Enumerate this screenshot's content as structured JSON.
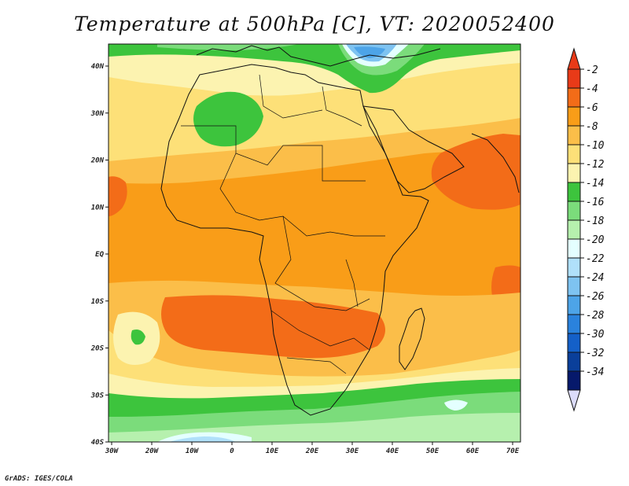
{
  "title": "Temperature at 500hPa [C], VT: 2020052400",
  "footer": "GrADS: IGES/COLA",
  "map": {
    "lon_range": [
      -30,
      75
    ],
    "lat_range": [
      -40,
      45
    ],
    "x_ticks": [
      "30W",
      "20W",
      "10W",
      "0",
      "10E",
      "20E",
      "30E",
      "40E",
      "50E",
      "60E",
      "70E"
    ],
    "y_ticks": [
      "40N",
      "30N",
      "20N",
      "10N",
      "EQ",
      "10S",
      "20S",
      "30S",
      "40S"
    ]
  },
  "colorbar": {
    "labels": [
      "-2",
      "-4",
      "-6",
      "-8",
      "-10",
      "-12",
      "-14",
      "-16",
      "-18",
      "-20",
      "-22",
      "-24",
      "-26",
      "-28",
      "-30",
      "-32",
      "-34"
    ],
    "colors": [
      "#e83a18",
      "#f36c18",
      "#f99d18",
      "#fbbe49",
      "#fde078",
      "#fcf3b0",
      "#3dc43d",
      "#7bdc7b",
      "#b6f0ae",
      "#e4ffff",
      "#b0e0fa",
      "#7ec3f1",
      "#4da4e8",
      "#2a82dd",
      "#1460c8",
      "#0a3f9a",
      "#06196b"
    ],
    "top_color": "#e83a18",
    "bottom_color": "#dcdcfa"
  },
  "field_colors": {
    "c_m4": "#f36c18",
    "c_m6": "#f99d18",
    "c_m8": "#fbbe49",
    "c_m10": "#fde078",
    "c_m12": "#fcf3b0",
    "c_m14": "#3dc43d",
    "c_m16": "#7bdc7b",
    "c_m18": "#b6f0ae",
    "c_m20": "#e4ffff",
    "c_m22": "#b0e0fa",
    "c_m24": "#7ec3f1",
    "c_m26": "#4da4e8",
    "c_m28": "#2a82dd"
  }
}
